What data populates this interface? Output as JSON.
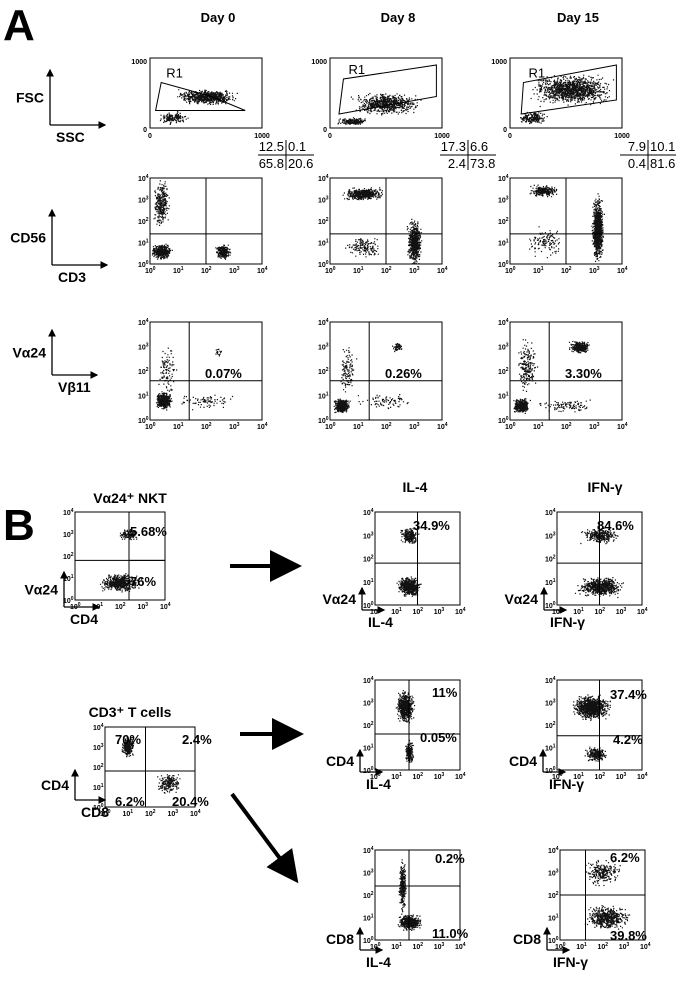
{
  "panel_a": {
    "label": "A",
    "days": [
      "Day 0",
      "Day 8",
      "Day 15"
    ],
    "scatter_row": {
      "y_axis": "FSC",
      "x_axis": "SSC",
      "gate": "R1",
      "ticks": [
        "0",
        "1000"
      ]
    },
    "cd56_row": {
      "y_axis": "CD56",
      "x_axis": "CD3",
      "quadrants": [
        {
          "ul": "12.5",
          "ur": "0.1",
          "ll": "65.8",
          "lr": "20.6"
        },
        {
          "ul": "17.3",
          "ur": "6.6",
          "ll": "2.4",
          "lr": "73.8"
        },
        {
          "ul": "7.9",
          "ur": "10.1",
          "ll": "0.4",
          "lr": "81.6"
        }
      ]
    },
    "va24_row": {
      "y_axis": "Vα24",
      "x_axis": "Vβ11",
      "percents": [
        "0.07%",
        "0.26%",
        "3.30%"
      ]
    }
  },
  "log_ticks": [
    {
      "base": "10",
      "exp": "0"
    },
    {
      "base": "10",
      "exp": "1"
    },
    {
      "base": "10",
      "exp": "2"
    },
    {
      "base": "10",
      "exp": "3"
    },
    {
      "base": "10",
      "exp": "4"
    }
  ],
  "panel_b": {
    "label": "B",
    "columns": [
      "IL-4",
      "IFN-γ"
    ],
    "nkt": {
      "title": "Vα24⁺ NKT",
      "y_axis": "Vα24",
      "x_axis": "CD4",
      "upper": "5.68%",
      "lower": "76%",
      "il4": {
        "y_axis": "Vα24",
        "x_axis": "IL-4",
        "percent": "34.9%"
      },
      "ifng": {
        "y_axis": "Vα24",
        "x_axis": "IFN-γ",
        "percent": "84.6%"
      }
    },
    "t_cells": {
      "title": "CD3⁺ T cells",
      "y_axis": "CD4",
      "x_axis": "CD8",
      "ul": "70%",
      "ur": "2.4%",
      "ll": "6.2%",
      "lr": "20.4%",
      "cd4_il4": {
        "y_axis": "CD4",
        "x_axis": "IL-4",
        "upper": "11%",
        "lower": "0.05%"
      },
      "cd4_ifng": {
        "y_axis": "CD4",
        "x_axis": "IFN-γ",
        "upper": "37.4%",
        "lower": "4.2%"
      },
      "cd8_il4": {
        "y_axis": "CD8",
        "x_axis": "IL-4",
        "upper": "0.2%",
        "lower": "11.0%"
      },
      "cd8_ifng": {
        "y_axis": "CD8",
        "x_axis": "IFN-γ",
        "upper": "6.2%",
        "lower": "39.8%"
      }
    }
  }
}
